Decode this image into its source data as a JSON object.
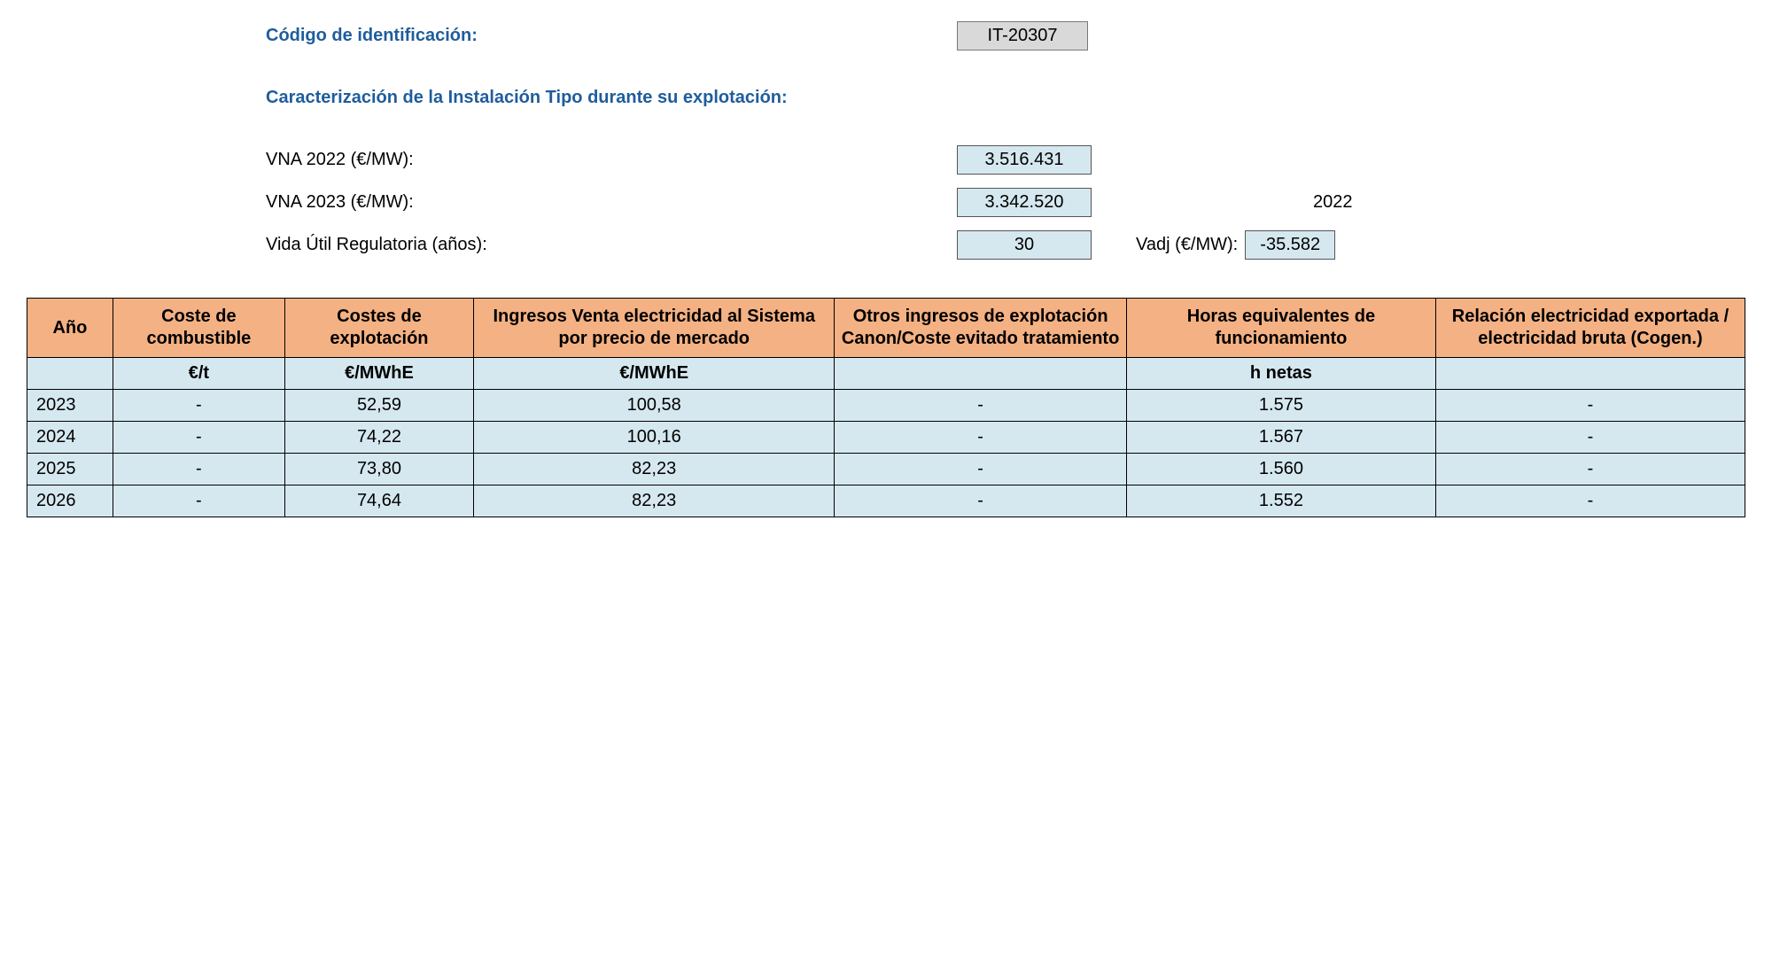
{
  "header": {
    "code_label": "Código de identificación:",
    "code_value": "IT-20307",
    "subtitle": "Caracterización de la Instalación Tipo durante su explotación:",
    "vna2022_label": "VNA 2022 (€/MW):",
    "vna2022_value": "3.516.431",
    "vna2023_label": "VNA 2023 (€/MW):",
    "vna2023_value": "3.342.520",
    "year_plain": "2022",
    "vida_label": "Vida Útil Regulatoria (años):",
    "vida_value": "30",
    "vadj_label": "Vadj (€/MW):",
    "vadj_value": "-35.582"
  },
  "table": {
    "columns": [
      "Año",
      "Coste de combustible",
      "Costes de explotación",
      "Ingresos Venta electricidad al Sistema por precio de mercado",
      "Otros ingresos de explotación Canon/Coste evitado tratamiento",
      "Horas equivalentes de funcionamiento",
      "Relación electricidad exportada / electricidad bruta\n(Cogen.)"
    ],
    "units": [
      "",
      "€/t",
      "€/MWhE",
      "€/MWhE",
      "",
      "h netas",
      ""
    ],
    "rows": [
      {
        "year": "2023",
        "fuel": "-",
        "explot": "52,59",
        "ingr": "100,58",
        "otros": "-",
        "horas": "1.575",
        "rel": "-"
      },
      {
        "year": "2024",
        "fuel": "-",
        "explot": "74,22",
        "ingr": "100,16",
        "otros": "-",
        "horas": "1.567",
        "rel": "-"
      },
      {
        "year": "2025",
        "fuel": "-",
        "explot": "73,80",
        "ingr": "82,23",
        "otros": "-",
        "horas": "1.560",
        "rel": "-"
      },
      {
        "year": "2026",
        "fuel": "-",
        "explot": "74,64",
        "ingr": "82,23",
        "otros": "-",
        "horas": "1.552",
        "rel": "-"
      }
    ]
  },
  "colors": {
    "header_bg": "#f4b183",
    "cell_bg": "#d6e8ef",
    "border": "#000000",
    "title_text": "#1f5d9c",
    "code_bg": "#d9d9d9"
  }
}
